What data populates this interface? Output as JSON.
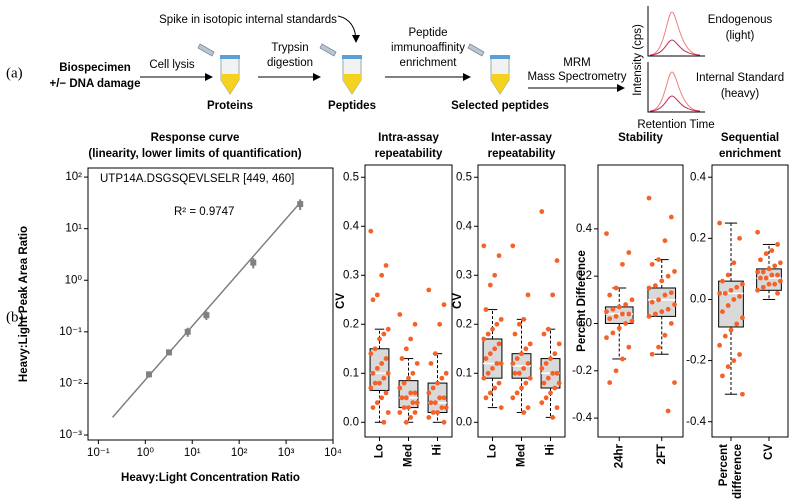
{
  "panel_a": {
    "label": "(a)",
    "biospecimen": [
      "Biospecimen",
      "+/− DNA damage"
    ],
    "cell_lysis": "Cell lysis",
    "proteins": "Proteins",
    "trypsin": [
      "Trypsin",
      "digestion"
    ],
    "spike": "Spike in isotopic internal standards",
    "peptides": "Peptides",
    "enrichment": [
      "Peptide",
      "immunoaffinity",
      "enrichment"
    ],
    "selected": "Selected peptides",
    "mrm": [
      "MRM",
      "Mass Spectrometry"
    ],
    "intensity": "Intensity (cps)",
    "retention": "Retention Time",
    "endogenous": [
      "Endogenous",
      "(light)"
    ],
    "standard": [
      "Internal Standard",
      "(heavy)"
    ]
  },
  "panel_b_label": "(b)",
  "chart_data": [
    {
      "type": "line",
      "title": [
        "Response curve",
        "(linearity, lower limits of quantification)"
      ],
      "annotation": "UTP14A.DSGSQEVLSELR [449, 460]",
      "r2_label": "R² = 0.9747",
      "xlabel": "Heavy:Light Concentration Ratio",
      "ylabel": "Heavy:Light Peak Area Ratio",
      "xscale": "log",
      "yscale": "log",
      "xlim": [
        0.06,
        10000
      ],
      "ylim": [
        0.0008,
        150
      ],
      "xticks": [
        {
          "value": 0.1,
          "label": "10⁻¹"
        },
        {
          "value": 1,
          "label": "10⁰"
        },
        {
          "value": 10,
          "label": "10¹"
        },
        {
          "value": 100,
          "label": "10²"
        },
        {
          "value": 1000,
          "label": "10³"
        },
        {
          "value": 10000,
          "label": "10⁴"
        }
      ],
      "yticks": [
        {
          "value": 0.001,
          "label": "10⁻³"
        },
        {
          "value": 0.01,
          "label": "10⁻²"
        },
        {
          "value": 0.1,
          "label": "10⁻¹"
        },
        {
          "value": 1,
          "label": "10⁰"
        },
        {
          "value": 10,
          "label": "10¹"
        },
        {
          "value": 100,
          "label": "10²"
        }
      ],
      "fit": {
        "x": [
          0.2,
          2000
        ],
        "y": [
          0.0022,
          32
        ]
      },
      "points": {
        "x": [
          1.2,
          3.2,
          8,
          20,
          200,
          2000
        ],
        "y": [
          0.015,
          0.04,
          0.1,
          0.21,
          2.2,
          30
        ],
        "error": [
          0.002,
          0.005,
          0.02,
          0.04,
          0.5,
          7
        ]
      },
      "color": "#808080"
    },
    {
      "type": "box",
      "title": [
        "Intra-assay",
        "repeatability"
      ],
      "ylabel": "CV",
      "ylim": [
        -0.03,
        0.525
      ],
      "yticks": [
        {
          "value": 0,
          "label": "0.0"
        },
        0.1,
        0.2,
        0.3,
        0.4,
        0.5
      ],
      "categories": [
        "Lo",
        "Med",
        "Hi"
      ],
      "whisker_low": [
        0.0,
        0.0,
        0.0
      ],
      "q1": [
        0.065,
        0.03,
        0.02
      ],
      "median": [
        0.1,
        0.05,
        0.04
      ],
      "q3": [
        0.15,
        0.085,
        0.08
      ],
      "whisker_high": [
        0.19,
        0.13,
        0.14
      ],
      "points": [
        [
          0.39,
          0.32,
          0.3,
          0.26,
          0.25,
          0.19,
          0.18,
          0.17,
          0.15,
          0.14,
          0.13,
          0.12,
          0.11,
          0.1,
          0.1,
          0.09,
          0.08,
          0.08,
          0.07,
          0.06,
          0.05,
          0.04,
          0.03,
          0.02,
          0.0
        ],
        [
          0.22,
          0.2,
          0.17,
          0.15,
          0.13,
          0.12,
          0.1,
          0.09,
          0.08,
          0.07,
          0.06,
          0.06,
          0.05,
          0.05,
          0.04,
          0.04,
          0.03,
          0.03,
          0.02,
          0.02,
          0.01,
          0.0
        ],
        [
          0.27,
          0.24,
          0.2,
          0.14,
          0.12,
          0.1,
          0.09,
          0.08,
          0.07,
          0.06,
          0.05,
          0.05,
          0.04,
          0.04,
          0.03,
          0.03,
          0.02,
          0.02,
          0.01,
          0.0
        ]
      ],
      "box_color": "#d9d9d9",
      "point_color": "#f4622a"
    },
    {
      "type": "box",
      "title": [
        "Inter-assay",
        "repeatability"
      ],
      "ylabel": "CV",
      "ylim": [
        -0.03,
        0.525
      ],
      "yticks": [
        {
          "value": 0,
          "label": "0.0"
        },
        0.1,
        0.2,
        0.3,
        0.4,
        0.5
      ],
      "categories": [
        "Lo",
        "Med",
        "Hi"
      ],
      "whisker_low": [
        0.03,
        0.02,
        0.01
      ],
      "q1": [
        0.09,
        0.09,
        0.07
      ],
      "median": [
        0.12,
        0.115,
        0.1
      ],
      "q3": [
        0.17,
        0.14,
        0.13
      ],
      "whisker_high": [
        0.23,
        0.21,
        0.19
      ],
      "points": [
        [
          0.36,
          0.34,
          0.3,
          0.28,
          0.23,
          0.21,
          0.2,
          0.19,
          0.18,
          0.17,
          0.16,
          0.15,
          0.14,
          0.13,
          0.12,
          0.12,
          0.11,
          0.1,
          0.09,
          0.08,
          0.07,
          0.06,
          0.05,
          0.03
        ],
        [
          0.36,
          0.26,
          0.21,
          0.2,
          0.18,
          0.16,
          0.15,
          0.14,
          0.13,
          0.12,
          0.12,
          0.11,
          0.1,
          0.1,
          0.09,
          0.08,
          0.07,
          0.06,
          0.05,
          0.03,
          0.02
        ],
        [
          0.43,
          0.33,
          0.26,
          0.19,
          0.18,
          0.16,
          0.14,
          0.13,
          0.12,
          0.11,
          0.1,
          0.1,
          0.09,
          0.08,
          0.08,
          0.07,
          0.06,
          0.05,
          0.04,
          0.03,
          0.01
        ]
      ],
      "box_color": "#d9d9d9",
      "point_color": "#f4622a"
    },
    {
      "type": "box",
      "title": [
        "Stability"
      ],
      "ylabel": "Percent Difference",
      "ylim": [
        -0.48,
        0.67
      ],
      "yticks": [
        -0.4,
        -0.2,
        {
          "value": 0,
          "label": "0.0"
        },
        0.2,
        0.4
      ],
      "categories": [
        "24hr",
        "2FT"
      ],
      "whisker_low": [
        -0.15,
        -0.13
      ],
      "q1": [
        0.0,
        0.03
      ],
      "median": [
        0.04,
        0.1
      ],
      "q3": [
        0.07,
        0.15
      ],
      "whisker_high": [
        0.15,
        0.27
      ],
      "points": [
        [
          0.38,
          0.3,
          0.25,
          0.15,
          0.12,
          0.1,
          0.08,
          0.07,
          0.06,
          0.05,
          0.04,
          0.04,
          0.03,
          0.02,
          0.01,
          0.0,
          -0.02,
          -0.04,
          -0.06,
          -0.1,
          -0.15,
          -0.2,
          -0.25
        ],
        [
          0.53,
          0.45,
          0.35,
          0.27,
          0.25,
          0.22,
          0.2,
          0.18,
          0.16,
          0.15,
          0.13,
          0.12,
          0.1,
          0.09,
          0.08,
          0.06,
          0.05,
          0.04,
          0.03,
          0.0,
          -0.05,
          -0.1,
          -0.13,
          -0.25,
          -0.37
        ]
      ],
      "box_color": "#d9d9d9",
      "point_color": "#f4622a"
    },
    {
      "type": "box",
      "title": [
        "Sequential",
        "enrichment"
      ],
      "ylim": [
        -0.45,
        0.44
      ],
      "yticks": [
        -0.4,
        -0.2,
        {
          "value": 0,
          "label": "0.0"
        },
        0.2,
        0.4
      ],
      "categories": [
        "Percent difference",
        "CV"
      ],
      "whisker_low": [
        -0.31,
        0.0
      ],
      "q1": [
        -0.09,
        0.03
      ],
      "median": [
        0.02,
        0.07
      ],
      "q3": [
        0.06,
        0.1
      ],
      "whisker_high": [
        0.25,
        0.18
      ],
      "points": [
        [
          0.25,
          0.2,
          0.12,
          0.08,
          0.06,
          0.05,
          0.04,
          0.03,
          0.02,
          0.02,
          0.01,
          0.0,
          -0.02,
          -0.04,
          -0.06,
          -0.08,
          -0.1,
          -0.12,
          -0.15,
          -0.18,
          -0.2,
          -0.22,
          -0.25,
          -0.31
        ],
        [
          0.22,
          0.18,
          0.16,
          0.15,
          0.13,
          0.12,
          0.11,
          0.1,
          0.09,
          0.09,
          0.08,
          0.08,
          0.07,
          0.07,
          0.06,
          0.05,
          0.05,
          0.04,
          0.03,
          0.02
        ]
      ],
      "box_color": "#d9d9d9",
      "point_color": "#f4622a"
    }
  ]
}
